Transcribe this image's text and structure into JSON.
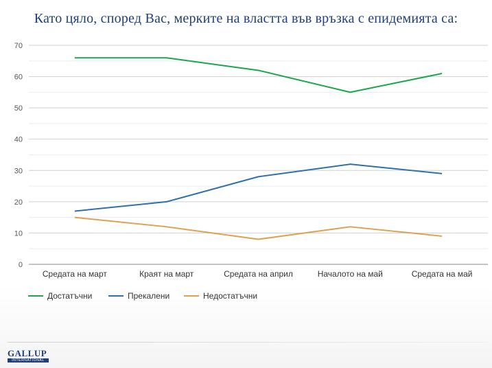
{
  "chart_data": {
    "type": "line",
    "title": "Като цяло, според Вас, мерките на властта във връзка с епидемията са:",
    "categories": [
      "Средата на март",
      "Краят на март",
      "Средата на април",
      "Началото на май",
      "Средата на май"
    ],
    "ylim": [
      0,
      70
    ],
    "yticks": [
      0,
      10,
      20,
      30,
      40,
      50,
      60,
      70
    ],
    "grid": true,
    "legend": "bottom-left",
    "series": [
      {
        "name": "Достатъчни",
        "color": "#1aa64a",
        "values": [
          66,
          66,
          62,
          55,
          61
        ]
      },
      {
        "name": "Прекалени",
        "color": "#2e6fb0",
        "values": [
          17,
          20,
          28,
          32,
          29
        ]
      },
      {
        "name": "Недостатъчни",
        "color": "#e0a050",
        "values": [
          15,
          12,
          8,
          12,
          9
        ]
      }
    ]
  },
  "logo": {
    "main": "GALLUP",
    "sub": "INTERNATIONAL"
  }
}
